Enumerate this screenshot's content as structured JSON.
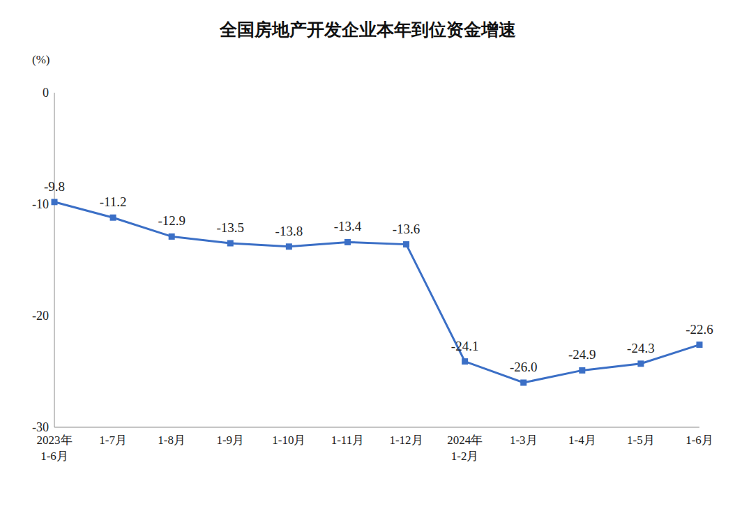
{
  "chart_data": {
    "type": "line",
    "title": "全国房地产开发企业本年到位资金增速",
    "y_label": "(%)",
    "categories": [
      "2023年\n1-6月",
      "1-7月",
      "1-8月",
      "1-9月",
      "1-10月",
      "1-11月",
      "1-12月",
      "2024年\n1-2月",
      "1-3月",
      "1-4月",
      "1-5月",
      "1-6月"
    ],
    "values": [
      -9.8,
      -11.2,
      -12.9,
      -13.5,
      -13.8,
      -13.4,
      -13.6,
      -24.1,
      -26.0,
      -24.9,
      -24.3,
      -22.6
    ],
    "value_labels": [
      "-9.8",
      "-11.2",
      "-12.9",
      "-13.5",
      "-13.8",
      "-13.4",
      "-13.6",
      "-24.1",
      "-26.0",
      "-24.9",
      "-24.3",
      "-22.6"
    ],
    "color": "#3b6fc6",
    "marker": "square",
    "data_labels": true,
    "grid": false,
    "ylim": [
      -30,
      0
    ],
    "yticks": [
      -30,
      -20,
      -10,
      0
    ]
  }
}
